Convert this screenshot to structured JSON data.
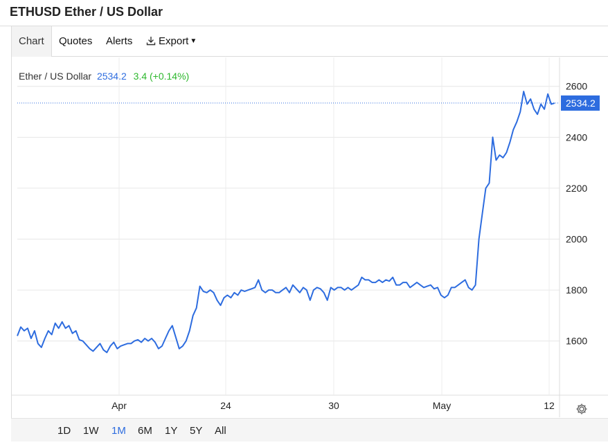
{
  "header": {
    "title": "ETHUSD Ether / US Dollar"
  },
  "tabs": [
    {
      "label": "Chart",
      "active": true
    },
    {
      "label": "Quotes",
      "active": false
    },
    {
      "label": "Alerts",
      "active": false
    },
    {
      "label": "Export",
      "active": false
    }
  ],
  "quote": {
    "name": "Ether / US Dollar",
    "price": "2534.2",
    "change": "3.4 (+0.14%)"
  },
  "ranges": [
    {
      "label": "1D",
      "active": false
    },
    {
      "label": "1W",
      "active": false
    },
    {
      "label": "1M",
      "active": true
    },
    {
      "label": "6M",
      "active": false
    },
    {
      "label": "1Y",
      "active": false
    },
    {
      "label": "5Y",
      "active": false
    },
    {
      "label": "All",
      "active": false
    }
  ],
  "icons": {
    "export": "download-icon",
    "settings": "gear-icon"
  },
  "colors": {
    "line": "#2d6cdf",
    "change_positive": "#2eb82e",
    "price_tag_bg": "#2d6cdf"
  },
  "chart_data": {
    "type": "line",
    "title": "",
    "xlabel": "",
    "ylabel": "",
    "x_ticks": [
      "Apr",
      "24",
      "30",
      "May",
      "12"
    ],
    "y_ticks": [
      1600,
      1800,
      2000,
      2200,
      2400,
      2600
    ],
    "ylim": [
      1390,
      2640
    ],
    "last_price_label": "2534.2",
    "grid": true,
    "series": [
      {
        "values": [
          1620,
          1655,
          1640,
          1650,
          1610,
          1640,
          1590,
          1575,
          1610,
          1640,
          1625,
          1670,
          1650,
          1675,
          1650,
          1660,
          1630,
          1640,
          1605,
          1600,
          1585,
          1570,
          1560,
          1575,
          1590,
          1565,
          1555,
          1580,
          1595,
          1570,
          1580,
          1585,
          1590,
          1590,
          1600,
          1605,
          1595,
          1610,
          1600,
          1610,
          1595,
          1570,
          1580,
          1610,
          1640,
          1660,
          1615,
          1570,
          1580,
          1600,
          1640,
          1700,
          1730,
          1815,
          1795,
          1790,
          1800,
          1790,
          1760,
          1740,
          1770,
          1780,
          1770,
          1790,
          1780,
          1800,
          1795,
          1800,
          1805,
          1810,
          1840,
          1800,
          1790,
          1800,
          1800,
          1790,
          1790,
          1800,
          1810,
          1790,
          1820,
          1805,
          1790,
          1810,
          1800,
          1760,
          1800,
          1810,
          1805,
          1790,
          1760,
          1810,
          1800,
          1810,
          1810,
          1800,
          1810,
          1800,
          1810,
          1820,
          1850,
          1840,
          1840,
          1830,
          1830,
          1840,
          1830,
          1840,
          1835,
          1850,
          1820,
          1820,
          1830,
          1830,
          1810,
          1820,
          1830,
          1820,
          1810,
          1815,
          1820,
          1805,
          1810,
          1780,
          1770,
          1780,
          1810,
          1810,
          1820,
          1830,
          1840,
          1810,
          1800,
          1820,
          2000,
          2100,
          2200,
          2220,
          2400,
          2310,
          2330,
          2320,
          2340,
          2380,
          2430,
          2460,
          2500,
          2580,
          2530,
          2550,
          2510,
          2490,
          2530,
          2510,
          2570,
          2530,
          2534.2
        ]
      }
    ]
  }
}
